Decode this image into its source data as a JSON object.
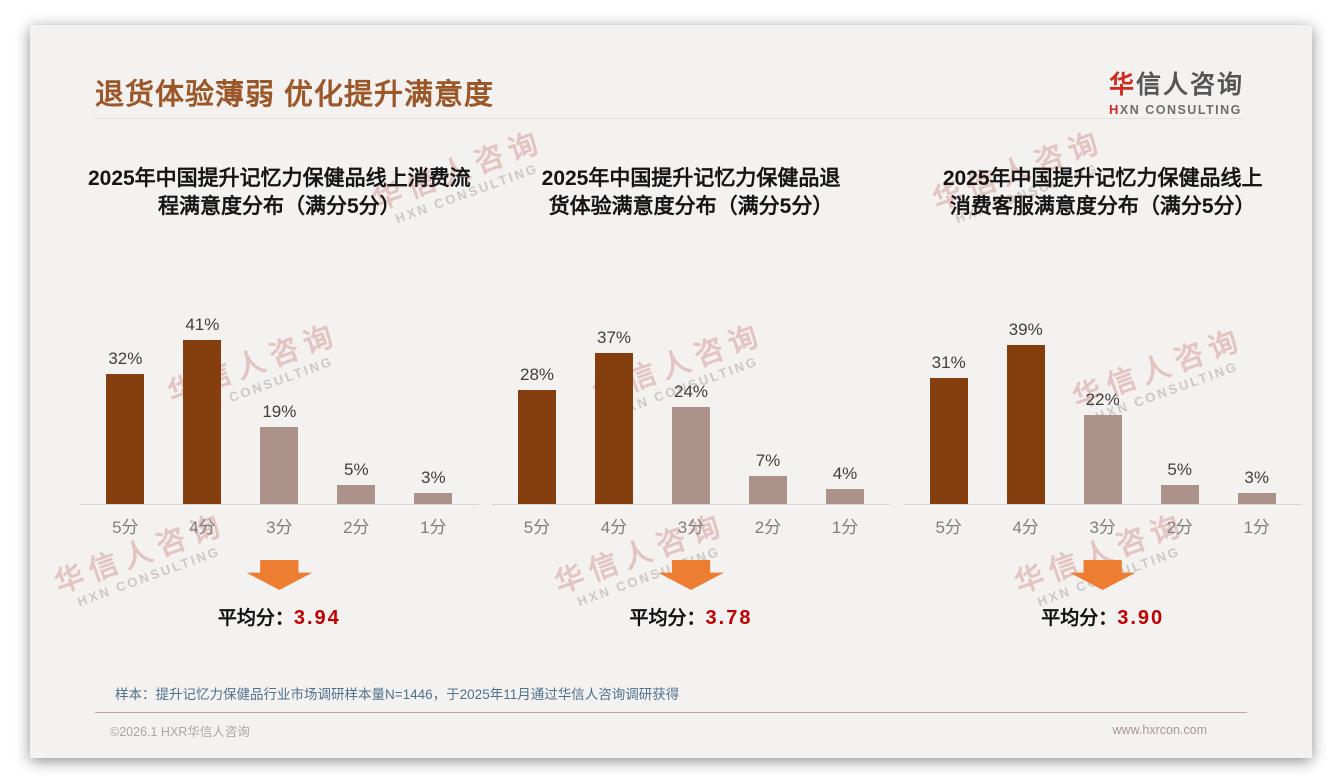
{
  "header": {
    "title": "退货体验薄弱 优化提升满意度",
    "logo": {
      "brand_first_char": "华",
      "brand_rest": "信人咨询",
      "subtitle_first": "H",
      "subtitle_rest": "XN CONSULTING"
    }
  },
  "watermark": {
    "line1": "华信人咨询",
    "line2": "HXN CONSULTING"
  },
  "chart_data": [
    {
      "type": "bar",
      "title": "2025年中国提升记忆力保健品线上消费流程满意度分布（满分5分）",
      "title_lines": [
        "2025年中国提升记忆力保健品线上消费流",
        "程满意度分布（满分5分）"
      ],
      "categories": [
        "5分",
        "4分",
        "3分",
        "2分",
        "1分"
      ],
      "values": [
        32,
        41,
        19,
        5,
        3
      ],
      "unit": "%",
      "ylim": [
        0,
        45
      ],
      "grid": false,
      "highlight_category": "3分",
      "average_label": "平均分：",
      "average": "3.94"
    },
    {
      "type": "bar",
      "title": "2025年中国提升记忆力保健品退货体验满意度分布（满分5分）",
      "title_lines": [
        "2025年中国提升记忆力保健品退",
        "货体验满意度分布（满分5分）"
      ],
      "categories": [
        "5分",
        "4分",
        "3分",
        "2分",
        "1分"
      ],
      "values": [
        28,
        37,
        24,
        7,
        4
      ],
      "unit": "%",
      "ylim": [
        0,
        45
      ],
      "grid": false,
      "highlight_category": "3分",
      "average_label": "平均分：",
      "average": "3.78"
    },
    {
      "type": "bar",
      "title": "2025年中国提升记忆力保健品线上消费客服满意度分布（满分5分）",
      "title_lines": [
        "2025年中国提升记忆力保健品线上",
        "消费客服满意度分布（满分5分）"
      ],
      "categories": [
        "5分",
        "4分",
        "3分",
        "2分",
        "1分"
      ],
      "values": [
        31,
        39,
        22,
        5,
        3
      ],
      "unit": "%",
      "ylim": [
        0,
        45
      ],
      "grid": false,
      "highlight_category": "3分",
      "average_label": "平均分：",
      "average": "3.90"
    }
  ],
  "colors": {
    "bar_dark": "#853E0E",
    "bar_light": "#AD928A",
    "title_accent": "#9C5728",
    "average_value": "#C00000",
    "arrow": "#ED7D31",
    "logo_red": "#D12920"
  },
  "footnote": "样本：提升记忆力保健品行业市场调研样本量N=1446，于2025年11月通过华信人咨询调研获得",
  "footer": {
    "copyright": "©2026.1 HXR华信人咨询",
    "website": "www.hxrcon.com"
  }
}
